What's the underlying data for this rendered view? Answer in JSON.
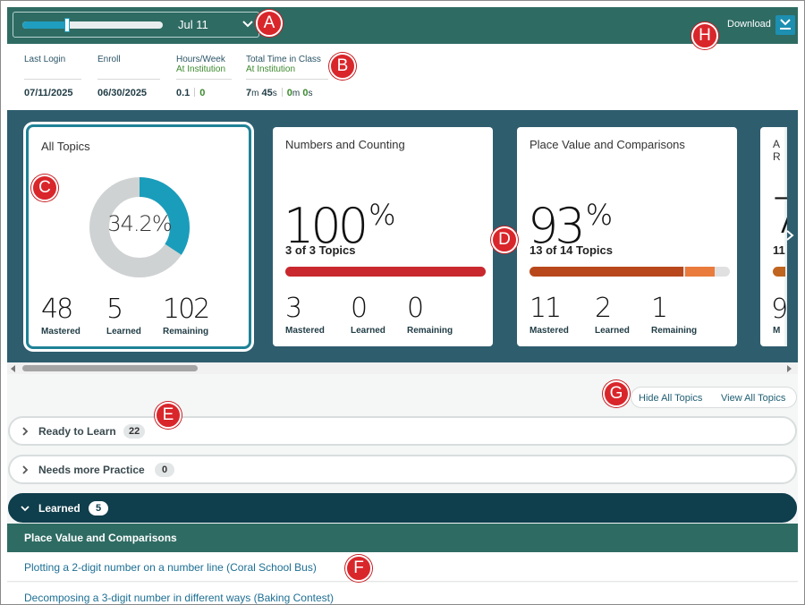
{
  "header": {
    "date_label": "Jul 11",
    "timeline_progress": 0.32,
    "download_label": "Download"
  },
  "stats": {
    "last_login_label": "Last Login",
    "last_login_value": "07/11/2025",
    "enroll_label": "Enroll",
    "enroll_value": "06/30/2025",
    "hours_label": "Hours/Week",
    "hours_sub": "At Institution",
    "hours_value_a": "0.1",
    "hours_value_b": "0",
    "time_label": "Total Time in Class",
    "time_sub": "At Institution",
    "time_a_min": "7",
    "time_a_sec": "45",
    "time_b_min": "0",
    "time_b_sec": "0",
    "unit_m": "m",
    "unit_s": "s"
  },
  "cards": [
    {
      "title": "All Topics",
      "percent_label": "34.2%",
      "percent": 34.2,
      "mastered": "48",
      "learned": "5",
      "remaining": "102"
    },
    {
      "title": "Numbers and Counting",
      "percent": "100",
      "topics": "3 of 3 Topics",
      "mastered": "3",
      "learned": "0",
      "remaining": "0"
    },
    {
      "title": "Place Value and Comparisons",
      "percent": "93",
      "topics": "13 of 14 Topics",
      "mastered": "11",
      "learned": "2",
      "remaining": "1"
    },
    {
      "title": "A R",
      "percent": "7",
      "topics": "11",
      "mastered": "9",
      "mastered_label": "M"
    }
  ],
  "count_labels": {
    "mastered": "Mastered",
    "learned": "Learned",
    "remaining": "Remaining"
  },
  "colors": {
    "donut_fill": "#1a9dbb",
    "donut_track": "#cfd2d3",
    "bar_full": "#c8282e",
    "bar_mastered": "#b8481c",
    "bar_learned": "#e97b3d"
  },
  "topic_toggle": {
    "hide": "Hide All Topics",
    "view": "View All Topics"
  },
  "sections": [
    {
      "label": "Ready to Learn",
      "count": "22"
    },
    {
      "label": "Needs more Practice",
      "count": "0"
    },
    {
      "label": "Learned",
      "count": "5"
    }
  ],
  "learned_group": {
    "title": "Place Value and Comparisons",
    "items": [
      "Plotting a 2-digit number on a number line (Coral School Bus)",
      "Decomposing a 3-digit number in different ways (Baking Contest)"
    ]
  },
  "callouts": [
    "A",
    "B",
    "C",
    "D",
    "E",
    "F",
    "G",
    "H"
  ]
}
